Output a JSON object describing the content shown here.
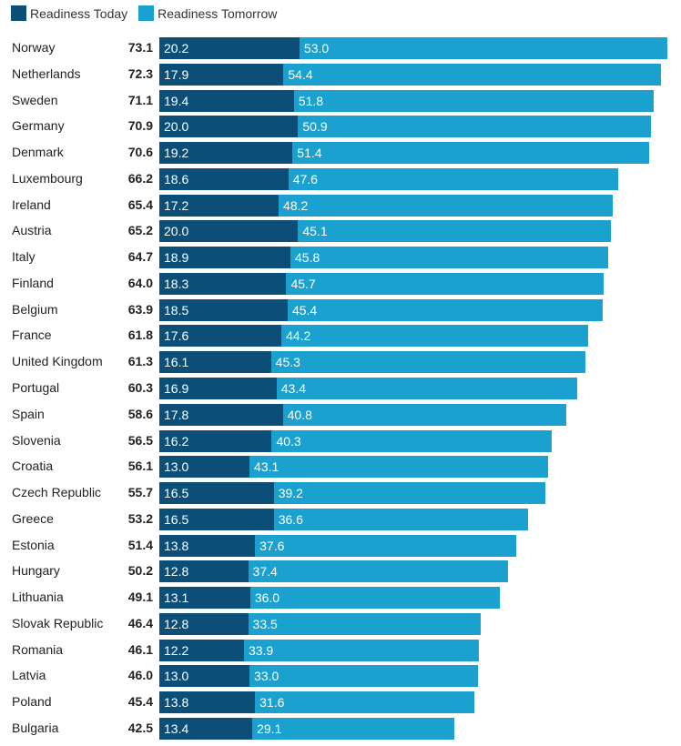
{
  "chart_data": {
    "type": "bar",
    "orientation": "horizontal",
    "stacked": true,
    "legend_position": "top-left",
    "grid": false,
    "categories": [
      "Norway",
      "Netherlands",
      "Sweden",
      "Germany",
      "Denmark",
      "Luxembourg",
      "Ireland",
      "Austria",
      "Italy",
      "Finland",
      "Belgium",
      "France",
      "United Kingdom",
      "Portugal",
      "Spain",
      "Slovenia",
      "Croatia",
      "Czech Republic",
      "Greece",
      "Estonia",
      "Hungary",
      "Lithuania",
      "Slovak Republic",
      "Romania",
      "Latvia",
      "Poland",
      "Bulgaria"
    ],
    "totals": [
      "73.1",
      "72.3",
      "71.1",
      "70.9",
      "70.6",
      "66.2",
      "65.4",
      "65.2",
      "64.7",
      "64.0",
      "63.9",
      "61.8",
      "61.3",
      "60.3",
      "58.6",
      "56.5",
      "56.1",
      "55.7",
      "53.2",
      "51.4",
      "50.2",
      "49.1",
      "46.4",
      "46.1",
      "46.0",
      "45.4",
      "42.5"
    ],
    "series": [
      {
        "name": "Readiness Today",
        "color": "#0b4f79",
        "values": [
          "20.2",
          "17.9",
          "19.4",
          "20.0",
          "19.2",
          "18.6",
          "17.2",
          "20.0",
          "18.9",
          "18.3",
          "18.5",
          "17.6",
          "16.1",
          "16.9",
          "17.8",
          "16.2",
          "13.0",
          "16.5",
          "16.5",
          "13.8",
          "12.8",
          "13.1",
          "12.8",
          "12.2",
          "13.0",
          "13.8",
          "13.4"
        ]
      },
      {
        "name": "Readiness Tomorrow",
        "color": "#1ba1cf",
        "values": [
          "53.0",
          "54.4",
          "51.8",
          "50.9",
          "51.4",
          "47.6",
          "48.2",
          "45.1",
          "45.8",
          "45.7",
          "45.4",
          "44.2",
          "45.3",
          "43.4",
          "40.8",
          "40.3",
          "43.1",
          "39.2",
          "36.6",
          "37.6",
          "37.4",
          "36.0",
          "33.5",
          "33.9",
          "33.0",
          "31.6",
          "29.1"
        ]
      }
    ]
  }
}
